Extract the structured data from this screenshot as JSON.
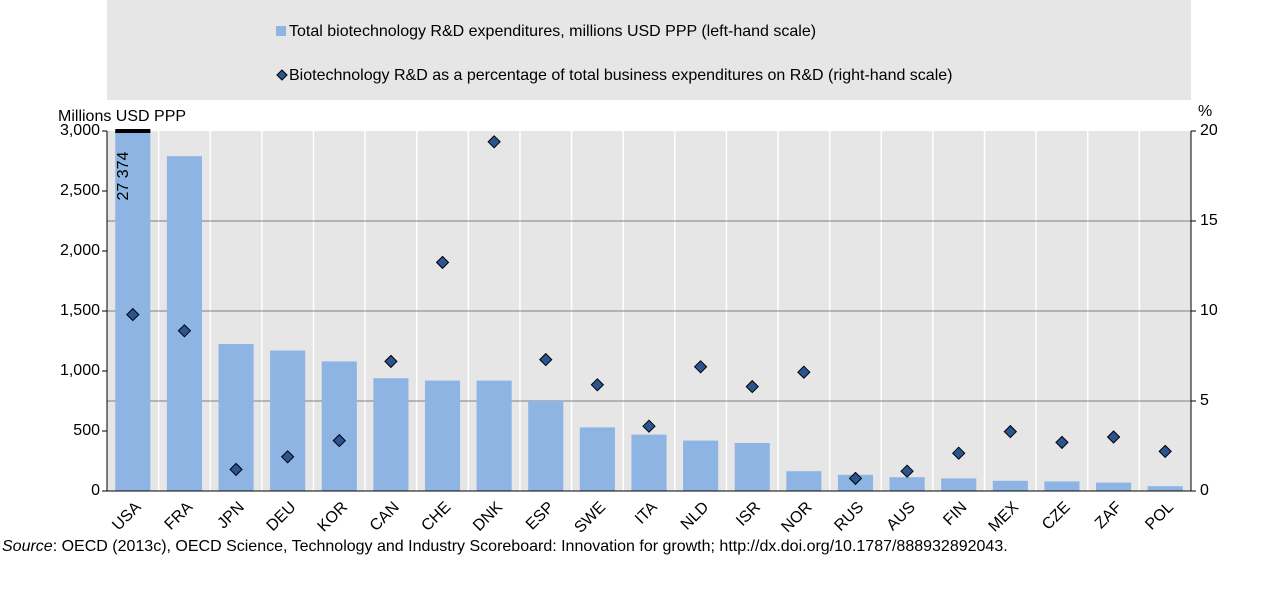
{
  "chart_data": {
    "type": "bar",
    "legend": [
      "Total biotechnology R&D expenditures, millions USD PPP (left-hand scale)",
      "Biotechnology R&D as a percentage of total business expenditures on R&D (right-hand scale)"
    ],
    "y_label": "Millions USD PPP",
    "y2_label": "%",
    "categories": [
      "USA",
      "FRA",
      "JPN",
      "DEU",
      "KOR",
      "CAN",
      "CHE",
      "DNK",
      "ESP",
      "SWE",
      "ITA",
      "NLD",
      "ISR",
      "NOR",
      "RUS",
      "AUS",
      "FIN",
      "MEX",
      "CZE",
      "ZAF",
      "POL"
    ],
    "series": [
      {
        "name": "Total biotechnology R&D expenditures, millions USD PPP (left-hand scale)",
        "type": "bar",
        "color": "#8eb4e3",
        "values": [
          27374,
          2790,
          1225,
          1170,
          1080,
          940,
          920,
          920,
          750,
          530,
          470,
          420,
          400,
          165,
          135,
          115,
          105,
          85,
          80,
          70,
          40
        ],
        "value_labels": [
          "27 374",
          null,
          null,
          null,
          null,
          null,
          null,
          null,
          null,
          null,
          null,
          null,
          null,
          null,
          null,
          null,
          null,
          null,
          null,
          null,
          null
        ]
      },
      {
        "name": "Biotechnology R&D as a percentage of total business expenditures on R&D (right-hand scale)",
        "type": "scatter",
        "axis": "y2",
        "color": "#2b5592",
        "values": [
          9.8,
          8.9,
          1.2,
          1.9,
          2.8,
          7.2,
          12.7,
          19.4,
          7.3,
          5.9,
          3.6,
          6.9,
          5.8,
          6.6,
          0.7,
          1.1,
          2.1,
          3.3,
          2.7,
          3.0,
          2.2
        ]
      }
    ],
    "ylim": [
      0,
      3000
    ],
    "yticks": [
      0,
      500,
      {
        "value": 1000,
        "label": "1,000"
      },
      {
        "value": 1500,
        "label": "1,500"
      },
      {
        "value": 2000,
        "label": "2,000"
      },
      {
        "value": 2500,
        "label": "2,500"
      },
      {
        "value": 3000,
        "label": "3,000"
      }
    ],
    "y2lim": [
      0,
      20
    ],
    "y2ticks": [
      0,
      5,
      10,
      15,
      20
    ],
    "grid": true
  },
  "source": {
    "label": "Source",
    "text": ":  OECD (2013c), OECD Science, Technology and Industry Scoreboard: Innovation for growth; http://dx.doi.org/10.1787/888932892043."
  }
}
